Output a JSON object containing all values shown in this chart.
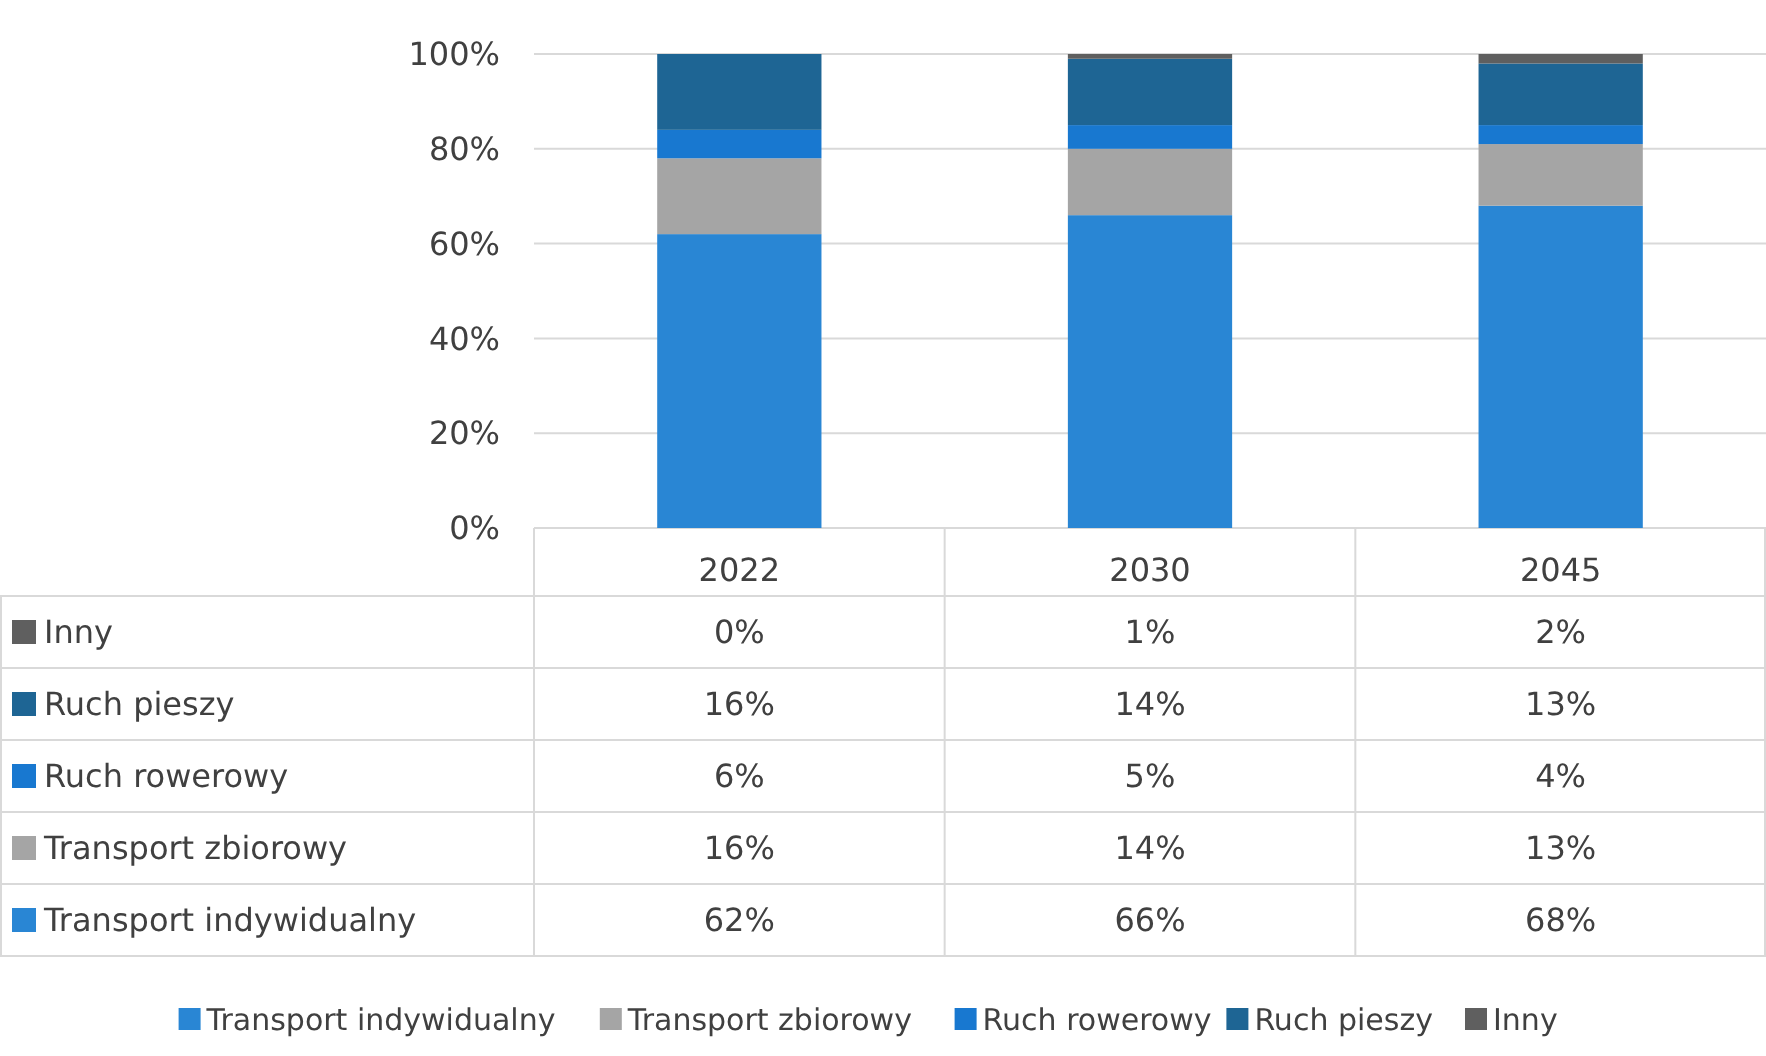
{
  "chart_data": {
    "type": "bar",
    "stacked": true,
    "categories": [
      "2022",
      "2030",
      "2045"
    ],
    "series": [
      {
        "name": "Transport indywidualny",
        "color": "#2986d4",
        "values": [
          62,
          66,
          68
        ],
        "value_labels": [
          "62%",
          "66%",
          "68%"
        ]
      },
      {
        "name": "Transport zbiorowy",
        "color": "#a5a5a5",
        "values": [
          16,
          14,
          13
        ],
        "value_labels": [
          "16%",
          "14%",
          "13%"
        ]
      },
      {
        "name": "Ruch rowerowy",
        "color": "#1878d0",
        "values": [
          6,
          5,
          4
        ],
        "value_labels": [
          "6%",
          "5%",
          "4%"
        ]
      },
      {
        "name": "Ruch pieszy",
        "color": "#1e6594",
        "values": [
          16,
          14,
          13
        ],
        "value_labels": [
          "16%",
          "14%",
          "13%"
        ]
      },
      {
        "name": "Inny",
        "color": "#5f5f5f",
        "values": [
          0,
          1,
          2
        ],
        "value_labels": [
          "0%",
          "1%",
          "2%"
        ]
      }
    ],
    "ylim": [
      0,
      100
    ],
    "yticks": [
      {
        "value": 0,
        "label": "0%"
      },
      {
        "value": 20,
        "label": "20%"
      },
      {
        "value": 40,
        "label": "40%"
      },
      {
        "value": 60,
        "label": "60%"
      },
      {
        "value": 80,
        "label": "80%"
      },
      {
        "value": 100,
        "label": "100%"
      }
    ],
    "grid": "y",
    "legend": "bottom"
  }
}
